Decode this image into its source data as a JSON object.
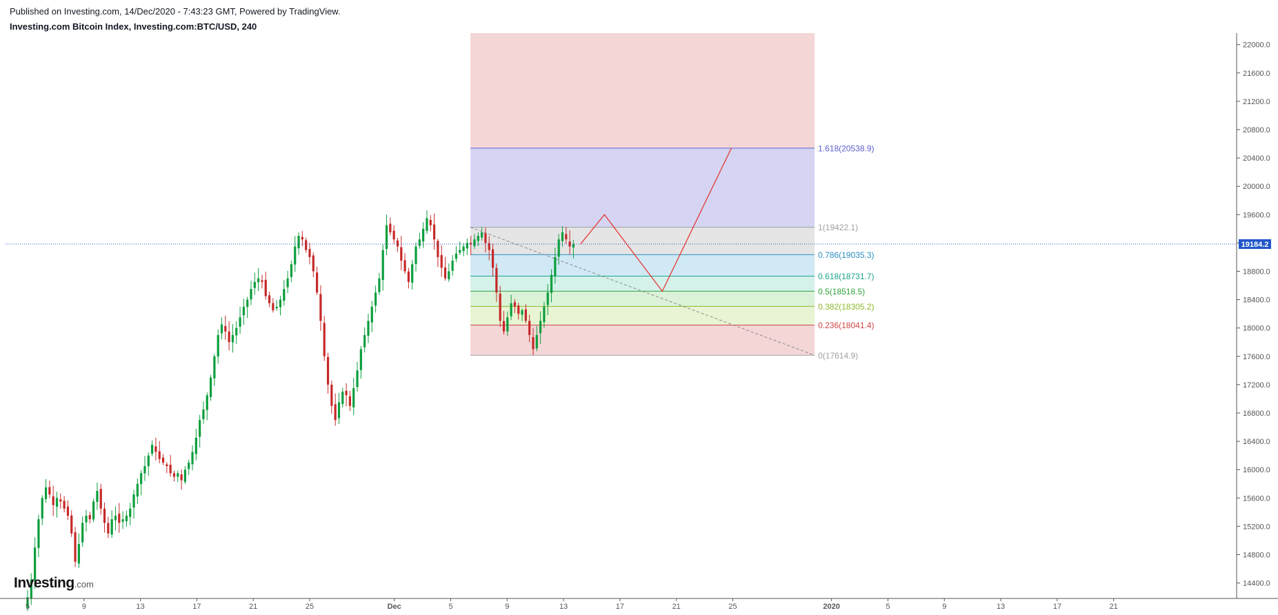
{
  "header": {
    "published": "Published on Investing.com, 14/Dec/2020 - 7:43:23 GMT, Powered by TradingView.",
    "title": "Investing.com Bitcoin Index, Investing.com:BTC/USD, 240"
  },
  "logo": {
    "brand": "Investing",
    "domain": ".com"
  },
  "colors": {
    "up": "#0a9e3d",
    "down": "#c62828",
    "axis": "#555555",
    "price_line": "#2157c9",
    "path": "#e53935"
  },
  "chart_data": {
    "type": "candlestick",
    "title": "Investing.com Bitcoin Index, Investing.com:BTC/USD, 240",
    "ylim": [
      14200,
      22100
    ],
    "y_ticks": [
      "14400.0",
      "14800.0",
      "15200.0",
      "15600.0",
      "16000.0",
      "16400.0",
      "16800.0",
      "17200.0",
      "17600.0",
      "18000.0",
      "18400.0",
      "18800.0",
      "19200.0",
      "19600.0",
      "20000.0",
      "20400.0",
      "20800.0",
      "21200.0",
      "21600.0",
      "22000.0"
    ],
    "x_ticks": [
      {
        "label": "5",
        "day": 0
      },
      {
        "label": "9",
        "day": 4
      },
      {
        "label": "13",
        "day": 8
      },
      {
        "label": "17",
        "day": 12
      },
      {
        "label": "21",
        "day": 16
      },
      {
        "label": "25",
        "day": 20
      },
      {
        "label": "Dec",
        "day": 26
      },
      {
        "label": "5",
        "day": 30
      },
      {
        "label": "9",
        "day": 34
      },
      {
        "label": "13",
        "day": 38
      },
      {
        "label": "17",
        "day": 42
      },
      {
        "label": "21",
        "day": 46
      },
      {
        "label": "25",
        "day": 50
      },
      {
        "label": "2020",
        "day": 57
      },
      {
        "label": "5",
        "day": 61
      },
      {
        "label": "9",
        "day": 65
      },
      {
        "label": "13",
        "day": 69
      },
      {
        "label": "17",
        "day": 73
      },
      {
        "label": "21",
        "day": 77
      }
    ],
    "current_price": "19184.2",
    "closes": [
      14200,
      14450,
      14900,
      15300,
      15600,
      15750,
      15650,
      15500,
      15600,
      15550,
      15450,
      15350,
      15100,
      14700,
      14950,
      15250,
      15350,
      15300,
      15550,
      15700,
      15450,
      15250,
      15100,
      15300,
      15350,
      15250,
      15300,
      15350,
      15450,
      15650,
      15800,
      15950,
      16050,
      16200,
      16350,
      16250,
      16150,
      16100,
      16050,
      15950,
      15900,
      15950,
      15850,
      16000,
      16100,
      16250,
      16450,
      16700,
      16850,
      17050,
      17300,
      17600,
      17900,
      18050,
      17950,
      17800,
      17900,
      18000,
      18150,
      18300,
      18400,
      18550,
      18650,
      18700,
      18650,
      18450,
      18350,
      18250,
      18300,
      18400,
      18550,
      18700,
      18900,
      19150,
      19300,
      19250,
      19100,
      19000,
      18800,
      18500,
      18100,
      17600,
      17200,
      16900,
      16700,
      16950,
      17100,
      17050,
      16900,
      17150,
      17400,
      17700,
      17900,
      18100,
      18300,
      18500,
      18700,
      19100,
      19450,
      19350,
      19250,
      19150,
      18950,
      18800,
      18650,
      18900,
      19150,
      19250,
      19400,
      19550,
      19450,
      19250,
      19000,
      18850,
      18700,
      18800,
      18950,
      19050,
      19100,
      19150,
      19200,
      19180,
      19250,
      19300,
      19350,
      19200,
      19100,
      18850,
      18500,
      18100,
      17950,
      18150,
      18350,
      18300,
      18200,
      18250,
      18100,
      17900,
      17700,
      17900,
      18100,
      18300,
      18500,
      18750,
      19000,
      19250,
      19350,
      19250,
      19150,
      19184
    ],
    "fib_levels": [
      {
        "ratio": "1.618",
        "price": 20538.9,
        "label": "1.618(20538.9)",
        "color": "#5c5fcf",
        "fill": "#d5d5f3",
        "fill_to": 19422.1
      },
      {
        "ratio": "1",
        "price": 19422.1,
        "label": "1(19422.1)",
        "color": "#a0a0a0",
        "fill": "#e5e5e5",
        "fill_to": 19035.3
      },
      {
        "ratio": "0.786",
        "price": 19035.3,
        "label": "0.786(19035.3)",
        "color": "#2b8fc0",
        "fill": "#d0e9f4",
        "fill_to": 18731.7
      },
      {
        "ratio": "0.618",
        "price": 18731.7,
        "label": "0.618(18731.7)",
        "color": "#18a58e",
        "fill": "#d4f1ea",
        "fill_to": 18518.5
      },
      {
        "ratio": "0.5",
        "price": 18518.5,
        "label": "0.5(18518.5)",
        "color": "#2ea33b",
        "fill": "#dbf2d8",
        "fill_to": 18305.2
      },
      {
        "ratio": "0.382",
        "price": 18305.2,
        "label": "0.382(18305.2)",
        "color": "#8db82a",
        "fill": "#e8f4d3",
        "fill_to": 18041.4
      },
      {
        "ratio": "0.236",
        "price": 18041.4,
        "label": "0.236(18041.4)",
        "color": "#d04545",
        "fill": "#f4d6d6",
        "fill_to": 17614.9
      },
      {
        "ratio": "0",
        "price": 17614.9,
        "label": "0(17614.9)",
        "color": "#a0a0a0",
        "fill": null,
        "fill_to": null
      }
    ],
    "fib_top_fill": {
      "from": 20538.9,
      "to": 22100,
      "color": "#f4d6d6"
    },
    "fib_day_range": [
      31.4,
      55.8
    ],
    "trend_line": [
      {
        "day": 31.4,
        "price": 19422.1
      },
      {
        "day": 55.8,
        "price": 17614.9
      }
    ],
    "projection_path": [
      {
        "day": 39.2,
        "price": 19184
      },
      {
        "day": 40.9,
        "price": 19600
      },
      {
        "day": 45.0,
        "price": 18518.5
      },
      {
        "day": 49.9,
        "price": 20538.9
      }
    ]
  }
}
